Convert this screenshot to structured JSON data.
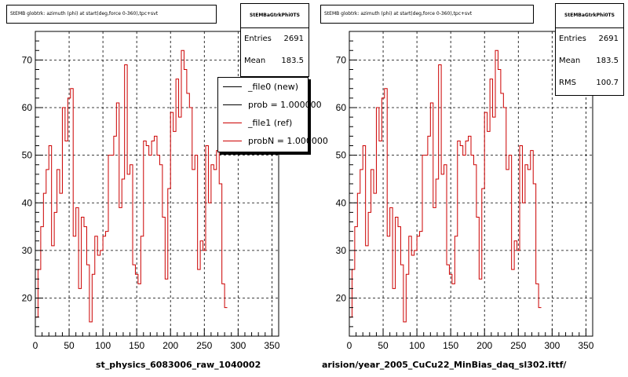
{
  "chart_data": [
    {
      "type": "line",
      "title": "StEMB globtrk: azimuth (phi) at start(deg,force 0-360),tpc+svt",
      "stats": {
        "name": "StEMBaGtrkPhi0TS",
        "entries_label": "Entries",
        "entries": "2691",
        "mean_label": "Mean",
        "mean": "183.5"
      },
      "legend": [
        {
          "label": "_file0 (new)",
          "color": "#000000"
        },
        {
          "label": "prob = 1.000000",
          "color": "#000000"
        },
        {
          "label": "_file1 (ref)",
          "color": "#cc0000"
        },
        {
          "label": "probN = 1.000000",
          "color": "#cc0000"
        }
      ],
      "footer": "st_physics_6083006_raw_1040002",
      "xlim": [
        0,
        360
      ],
      "ylim": [
        12,
        76
      ],
      "xticks": [
        "0",
        "50",
        "100",
        "150",
        "200",
        "250",
        "300",
        "350"
      ],
      "yticks": [
        "20",
        "30",
        "40",
        "50",
        "60",
        "70"
      ],
      "bin_width": 4,
      "grid": true,
      "series": [
        {
          "color": "#cc0000",
          "values": [
            16,
            26,
            35,
            42,
            47,
            52,
            31,
            38,
            47,
            42,
            60,
            53,
            62,
            64,
            33,
            39,
            22,
            37,
            35,
            27,
            15,
            25,
            33,
            29,
            30,
            33,
            34,
            50,
            50,
            54,
            61,
            39,
            45,
            69,
            46,
            48,
            27,
            25,
            23,
            33,
            53,
            52,
            50,
            53,
            54,
            50,
            48,
            37,
            24,
            43,
            59,
            55,
            66,
            58,
            72,
            68,
            63,
            60,
            47,
            50,
            26,
            32,
            30,
            52,
            40,
            48,
            47,
            51,
            44,
            23,
            18
          ]
        }
      ]
    },
    {
      "type": "line",
      "title": "StEMB globtrk: azimuth (phi) at start(deg,force 0-360),tpc+svt",
      "stats": {
        "name": "StEMBaGtrkPhi0TS",
        "entries_label": "Entries",
        "entries": "2691",
        "mean_label": "Mean",
        "mean": "183.5",
        "rms_label": "RMS",
        "rms": "100.7"
      },
      "footer": "arision/year_2005_CuCu22_MinBias_daq_sl302.ittf/",
      "xlim": [
        0,
        360
      ],
      "ylim": [
        12,
        76
      ],
      "xticks": [
        "0",
        "50",
        "100",
        "150",
        "200",
        "250",
        "300",
        "350"
      ],
      "yticks": [
        "20",
        "30",
        "40",
        "50",
        "60",
        "70"
      ],
      "bin_width": 4,
      "grid": true,
      "series": [
        {
          "color": "#cc0000",
          "values": [
            16,
            26,
            35,
            42,
            47,
            52,
            31,
            38,
            47,
            42,
            60,
            53,
            62,
            64,
            33,
            39,
            22,
            37,
            35,
            27,
            15,
            25,
            33,
            29,
            30,
            33,
            34,
            50,
            50,
            54,
            61,
            39,
            45,
            69,
            46,
            48,
            27,
            25,
            23,
            33,
            53,
            52,
            50,
            53,
            54,
            50,
            48,
            37,
            24,
            43,
            59,
            55,
            66,
            58,
            72,
            68,
            63,
            60,
            47,
            50,
            26,
            32,
            30,
            52,
            40,
            48,
            47,
            51,
            44,
            23,
            18
          ]
        }
      ]
    }
  ]
}
